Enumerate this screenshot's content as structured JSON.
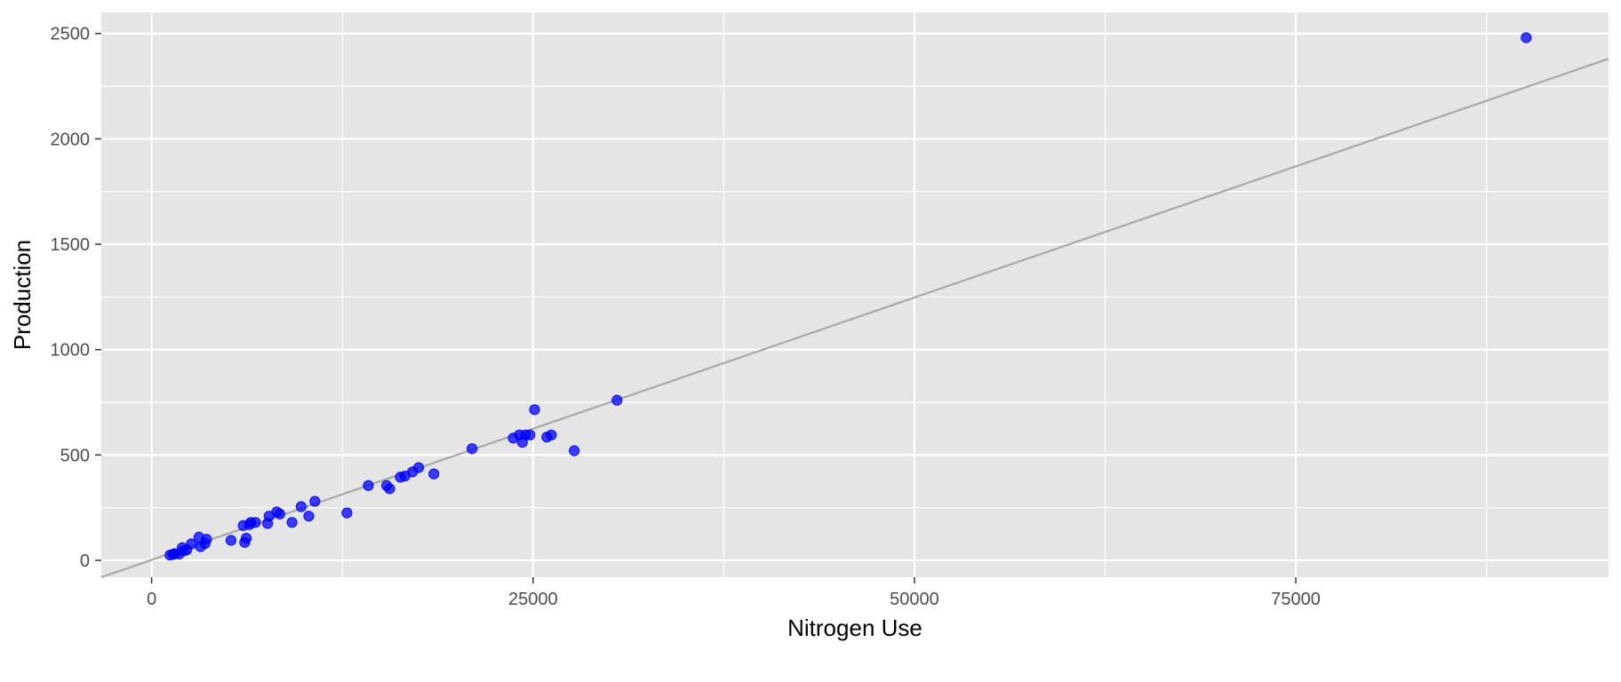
{
  "chart_data": {
    "type": "scatter",
    "title": "",
    "xlabel": "Nitrogen Use",
    "ylabel": "Production",
    "xlim": [
      -3300,
      95500
    ],
    "ylim": [
      -80,
      2600
    ],
    "x_ticks": [
      0,
      25000,
      50000,
      75000
    ],
    "x_tick_labels": [
      "0",
      "25000",
      "50000",
      "75000"
    ],
    "y_ticks": [
      0,
      500,
      1000,
      1500,
      2000,
      2500
    ],
    "y_tick_labels": [
      "0",
      "500",
      "1000",
      "1500",
      "2000",
      "2500"
    ],
    "grid": true,
    "legend": "none",
    "colors": {
      "panel_background": "#e5e5e5",
      "grid": "#ffffff",
      "points": "#0000ff",
      "trend_line": "#a8a8a8"
    },
    "trend_line": {
      "x": [
        -3300,
        95500
      ],
      "y": [
        -80,
        2380
      ]
    },
    "points": [
      {
        "x": 1200,
        "y": 25
      },
      {
        "x": 1400,
        "y": 28
      },
      {
        "x": 1500,
        "y": 32
      },
      {
        "x": 1800,
        "y": 30
      },
      {
        "x": 2000,
        "y": 60
      },
      {
        "x": 2100,
        "y": 45
      },
      {
        "x": 2300,
        "y": 50
      },
      {
        "x": 2600,
        "y": 78
      },
      {
        "x": 3100,
        "y": 110
      },
      {
        "x": 3200,
        "y": 65
      },
      {
        "x": 3500,
        "y": 80
      },
      {
        "x": 3600,
        "y": 100
      },
      {
        "x": 5200,
        "y": 95
      },
      {
        "x": 6000,
        "y": 165
      },
      {
        "x": 6100,
        "y": 85
      },
      {
        "x": 6200,
        "y": 105
      },
      {
        "x": 6400,
        "y": 170
      },
      {
        "x": 6500,
        "y": 180
      },
      {
        "x": 6800,
        "y": 180
      },
      {
        "x": 7600,
        "y": 175
      },
      {
        "x": 7700,
        "y": 210
      },
      {
        "x": 8200,
        "y": 230
      },
      {
        "x": 8400,
        "y": 220
      },
      {
        "x": 9200,
        "y": 180
      },
      {
        "x": 9800,
        "y": 255
      },
      {
        "x": 10300,
        "y": 210
      },
      {
        "x": 10700,
        "y": 280
      },
      {
        "x": 12800,
        "y": 225
      },
      {
        "x": 14200,
        "y": 355
      },
      {
        "x": 15400,
        "y": 355
      },
      {
        "x": 15600,
        "y": 340
      },
      {
        "x": 16300,
        "y": 395
      },
      {
        "x": 16600,
        "y": 400
      },
      {
        "x": 17100,
        "y": 420
      },
      {
        "x": 17500,
        "y": 440
      },
      {
        "x": 18500,
        "y": 410
      },
      {
        "x": 21000,
        "y": 530
      },
      {
        "x": 23700,
        "y": 580
      },
      {
        "x": 24100,
        "y": 595
      },
      {
        "x": 24300,
        "y": 560
      },
      {
        "x": 24500,
        "y": 595
      },
      {
        "x": 24800,
        "y": 595
      },
      {
        "x": 25100,
        "y": 715
      },
      {
        "x": 25900,
        "y": 585
      },
      {
        "x": 26200,
        "y": 595
      },
      {
        "x": 27700,
        "y": 520
      },
      {
        "x": 30500,
        "y": 760
      },
      {
        "x": 90100,
        "y": 2480
      }
    ]
  }
}
